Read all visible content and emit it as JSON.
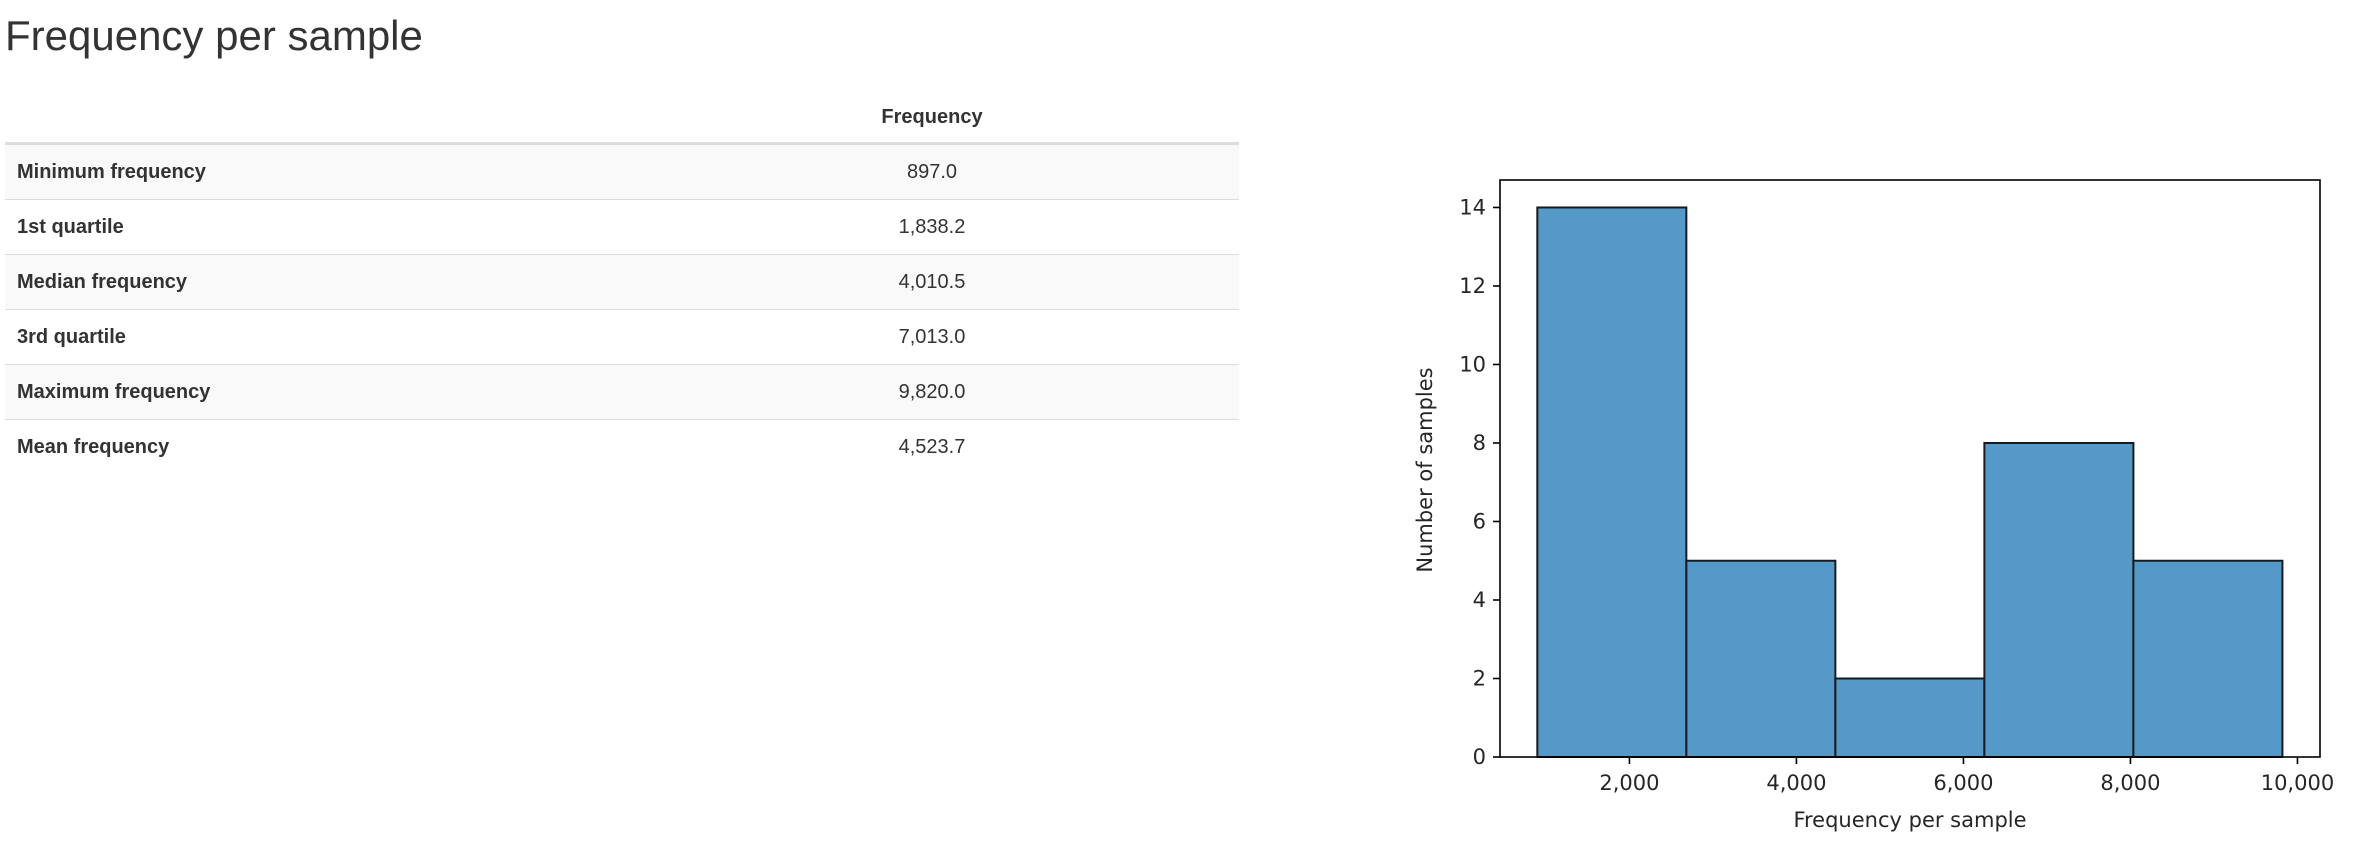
{
  "page": {
    "title": "Frequency per sample"
  },
  "table": {
    "columns": [
      "",
      "Frequency"
    ],
    "rows": [
      {
        "label": "Minimum frequency",
        "value": "897.0"
      },
      {
        "label": "1st quartile",
        "value": "1,838.2"
      },
      {
        "label": "Median frequency",
        "value": "4,010.5"
      },
      {
        "label": "3rd quartile",
        "value": "7,013.0"
      },
      {
        "label": "Maximum frequency",
        "value": "9,820.0"
      },
      {
        "label": "Mean frequency",
        "value": "4,523.7"
      }
    ]
  },
  "chart_data": {
    "type": "bar",
    "subtype": "histogram",
    "bin_edges": [
      897.0,
      2681.6,
      4466.2,
      6250.8,
      8035.4,
      9820.0
    ],
    "values": [
      14,
      5,
      2,
      8,
      5
    ],
    "xlabel": "Frequency per sample",
    "ylabel": "Number of samples",
    "xlim": [
      450,
      10270
    ],
    "ylim": [
      0,
      14.7
    ],
    "xticks": [
      2000,
      4000,
      6000,
      8000,
      10000
    ],
    "xtick_labels": [
      "2,000",
      "4,000",
      "6,000",
      "8,000",
      "10,000"
    ],
    "yticks": [
      0,
      2,
      4,
      6,
      8,
      10,
      12,
      14
    ],
    "ytick_labels": [
      "0",
      "2",
      "4",
      "6",
      "8",
      "10",
      "12",
      "14"
    ],
    "grid": false,
    "bar_color": "#5499c7",
    "edge_color": "#1a1a1a"
  }
}
